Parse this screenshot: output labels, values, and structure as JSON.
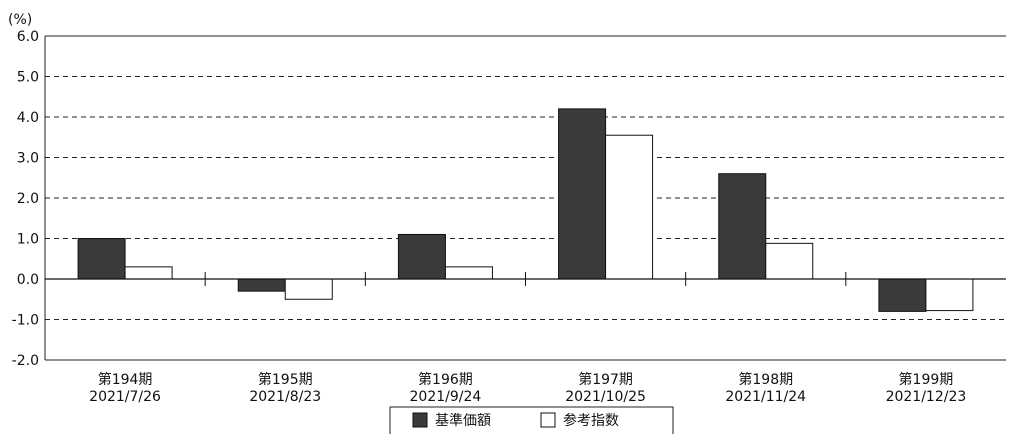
{
  "chart_data": {
    "type": "bar",
    "y_unit_label": "(%)",
    "ylim": [
      -2.0,
      6.0
    ],
    "y_ticks": [
      "6.0",
      "5.0",
      "4.0",
      "3.0",
      "2.0",
      "1.0",
      "0.0",
      "-1.0",
      "-2.0"
    ],
    "grid": "dashed horizontal",
    "categories": [
      {
        "period": "第194期",
        "date": "2021/7/26"
      },
      {
        "period": "第195期",
        "date": "2021/8/23"
      },
      {
        "period": "第196期",
        "date": "2021/9/24"
      },
      {
        "period": "第197期",
        "date": "2021/10/25"
      },
      {
        "period": "第198期",
        "date": "2021/11/24"
      },
      {
        "period": "第199期",
        "date": "2021/12/23"
      }
    ],
    "series": [
      {
        "name": "基準価額",
        "color": "#3a3a3a",
        "values": [
          1.0,
          -0.3,
          1.1,
          4.2,
          2.6,
          -0.8
        ]
      },
      {
        "name": "参考指数",
        "color": "#ffffff",
        "values": [
          0.3,
          -0.5,
          0.3,
          3.55,
          0.88,
          -0.78
        ]
      }
    ],
    "legend_position": "bottom-center"
  }
}
